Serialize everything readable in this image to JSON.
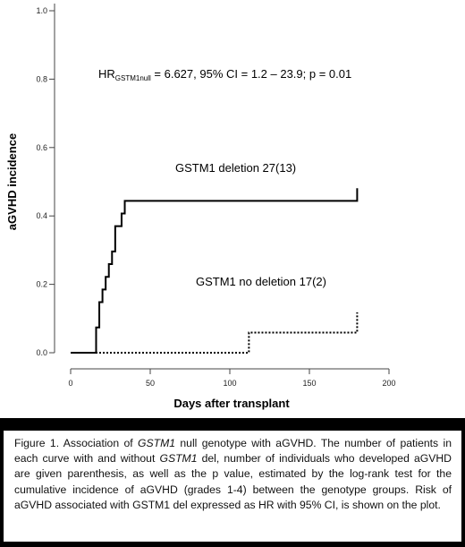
{
  "chart_data": {
    "type": "line",
    "title": "",
    "xlabel": "Days after transplant",
    "ylabel": "aGVHD incidence",
    "xlim": [
      0,
      200
    ],
    "ylim": [
      0,
      1.0
    ],
    "xticks": [
      0,
      50,
      100,
      150,
      200
    ],
    "yticks": [
      "0.0",
      "0.2",
      "0.4",
      "0.6",
      "0.8",
      "1.0"
    ],
    "grid": false,
    "annotation": {
      "prefix": "HR",
      "subscript": "GSTM1null",
      "text": " = 6.627, 95% CI = 1.2 – 23.9; p = 0.01"
    },
    "series": [
      {
        "name": "GSTM1 deletion 27(13)",
        "style": "solid",
        "color": "#000000",
        "x": [
          0,
          14,
          16,
          18,
          20,
          22,
          24,
          26,
          28,
          32,
          34,
          180
        ],
        "y": [
          0.0,
          0.0,
          0.074,
          0.148,
          0.185,
          0.222,
          0.259,
          0.296,
          0.37,
          0.407,
          0.444,
          0.481
        ]
      },
      {
        "name": "GSTM1 no deletion 17(2)",
        "style": "dotted",
        "color": "#000000",
        "x": [
          0,
          35,
          112,
          180
        ],
        "y": [
          0.0,
          0.0,
          0.059,
          0.118
        ]
      }
    ]
  },
  "caption": {
    "segments": [
      {
        "t": "Figure 1. Association of ",
        "i": false
      },
      {
        "t": "GSTM1",
        "i": true
      },
      {
        "t": " null genotype with aGVHD. The number of patients in each curve with and without ",
        "i": false
      },
      {
        "t": "GSTM1",
        "i": true
      },
      {
        "t": " del, number of individuals who developed aGVHD are given  parenthesis, as well as the p value, estimated by the log-rank test for the cumulative incidence of aGVHD (grades 1-4) between the genotype groups. Risk of aGVHD associated with GSTM1 del expressed as HR with 95% CI, is shown on the plot.",
        "i": false
      }
    ]
  }
}
